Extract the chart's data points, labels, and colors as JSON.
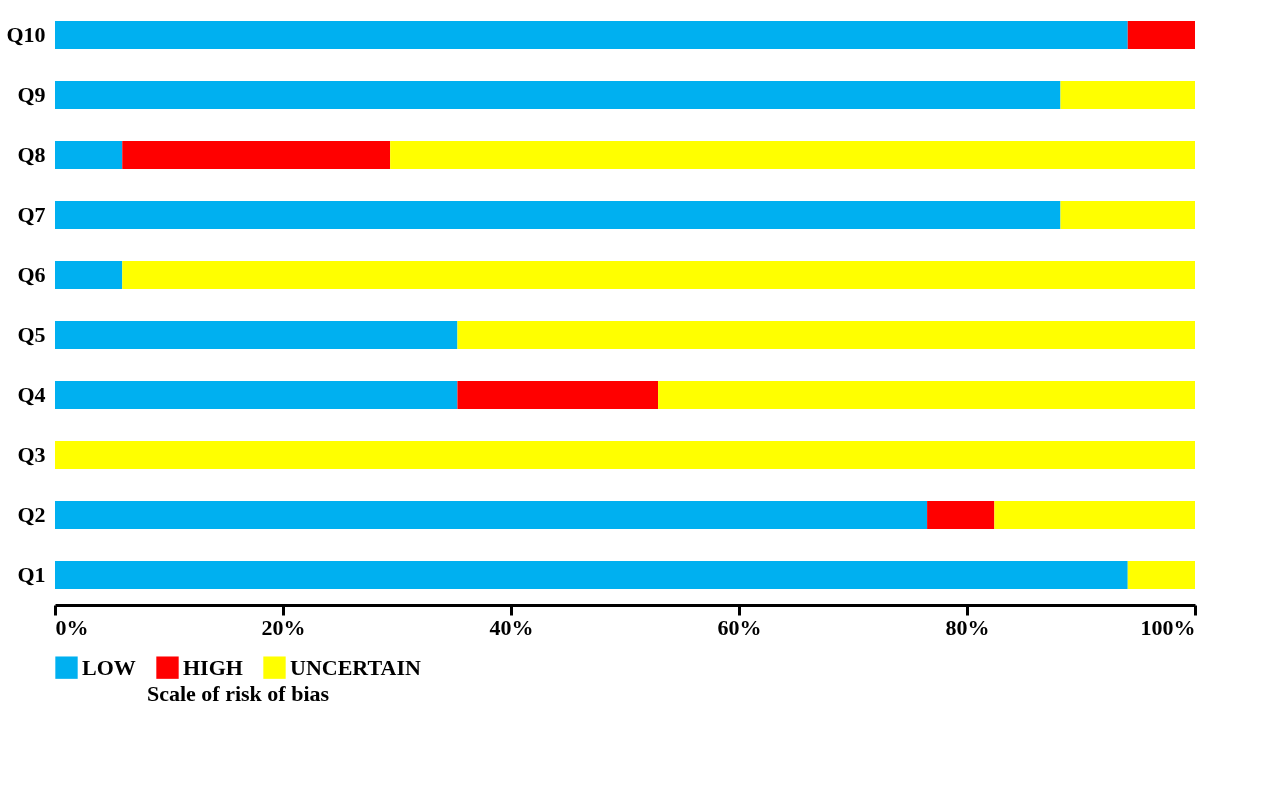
{
  "chart_data": {
    "type": "bar",
    "orientation": "horizontal",
    "stacked": true,
    "categories": [
      "Q10",
      "Q9",
      "Q8",
      "Q7",
      "Q6",
      "Q5",
      "Q4",
      "Q3",
      "Q2",
      "Q1"
    ],
    "series": [
      {
        "name": "LOW",
        "color": "#00b0f0",
        "values": [
          94.1,
          88.2,
          5.9,
          88.2,
          5.9,
          35.3,
          35.3,
          0,
          76.5,
          94.1
        ]
      },
      {
        "name": "HIGH",
        "color": "#ff0000",
        "values": [
          5.9,
          0,
          23.5,
          0,
          0,
          0,
          17.6,
          0,
          5.9,
          0
        ]
      },
      {
        "name": "UNCERTAIN",
        "color": "#ffff00",
        "values": [
          0,
          11.8,
          70.6,
          11.8,
          94.1,
          64.7,
          47.1,
          100,
          17.6,
          5.9
        ]
      }
    ],
    "xlim": [
      0,
      100
    ],
    "xticks": [
      {
        "value": 0,
        "label": "0%"
      },
      {
        "value": 20,
        "label": "20%"
      },
      {
        "value": 40,
        "label": "40%"
      },
      {
        "value": 60,
        "label": "60%"
      },
      {
        "value": 80,
        "label": "80%"
      },
      {
        "value": 100,
        "label": "100%"
      }
    ],
    "legend": "bottom",
    "legend_title": "Scale of risk of bias",
    "grid": false
  }
}
